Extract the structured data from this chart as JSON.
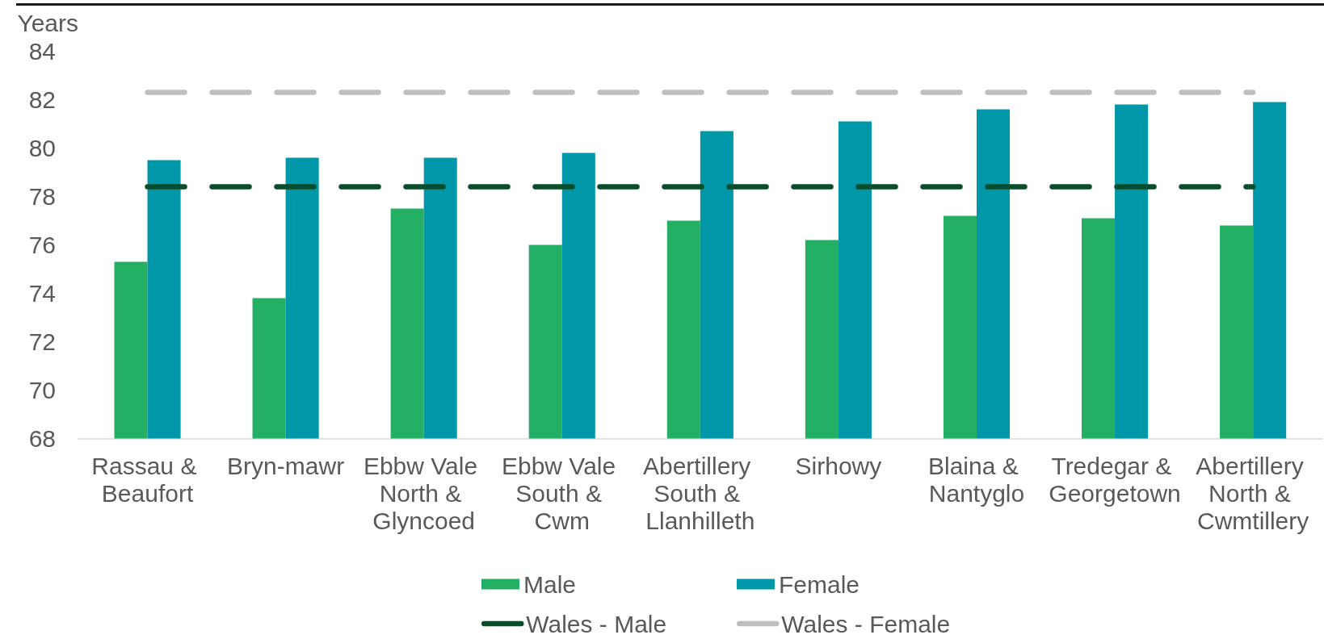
{
  "chart_data": {
    "type": "bar",
    "ylabel": "Years",
    "categories": [
      "Rassau & Beaufort",
      "Bryn-mawr",
      "Ebbw Vale North & Glyncoed",
      "Ebbw Vale South & Cwm",
      "Abertillery South & Llanhilleth",
      "Sirhowy",
      "Blaina & Nantyglo",
      "Tredegar & Georgetown",
      "Abertillery North & Cwmtillery"
    ],
    "series": [
      {
        "name": "Male",
        "color": "#23b064",
        "values": [
          75.3,
          73.8,
          77.5,
          76.0,
          77.0,
          76.2,
          77.2,
          77.1,
          76.8
        ]
      },
      {
        "name": "Female",
        "color": "#0097a9",
        "values": [
          79.5,
          79.6,
          79.6,
          79.8,
          80.7,
          81.1,
          81.6,
          81.8,
          81.9
        ]
      },
      {
        "name": "Wales - Male",
        "type": "line",
        "color": "#0b4d2b",
        "values": [
          78.4,
          78.4,
          78.4,
          78.4,
          78.4,
          78.4,
          78.4,
          78.4,
          78.4
        ]
      },
      {
        "name": "Wales - Female",
        "type": "line",
        "color": "#bfbfbf",
        "values": [
          82.3,
          82.3,
          82.3,
          82.3,
          82.3,
          82.3,
          82.3,
          82.3,
          82.3
        ]
      }
    ],
    "ylim": [
      68,
      84
    ],
    "yticks": [
      68,
      70,
      72,
      74,
      76,
      78,
      80,
      82,
      84
    ],
    "grid": false,
    "legend": "bottom",
    "marker": "none",
    "line_style": "dashed"
  }
}
